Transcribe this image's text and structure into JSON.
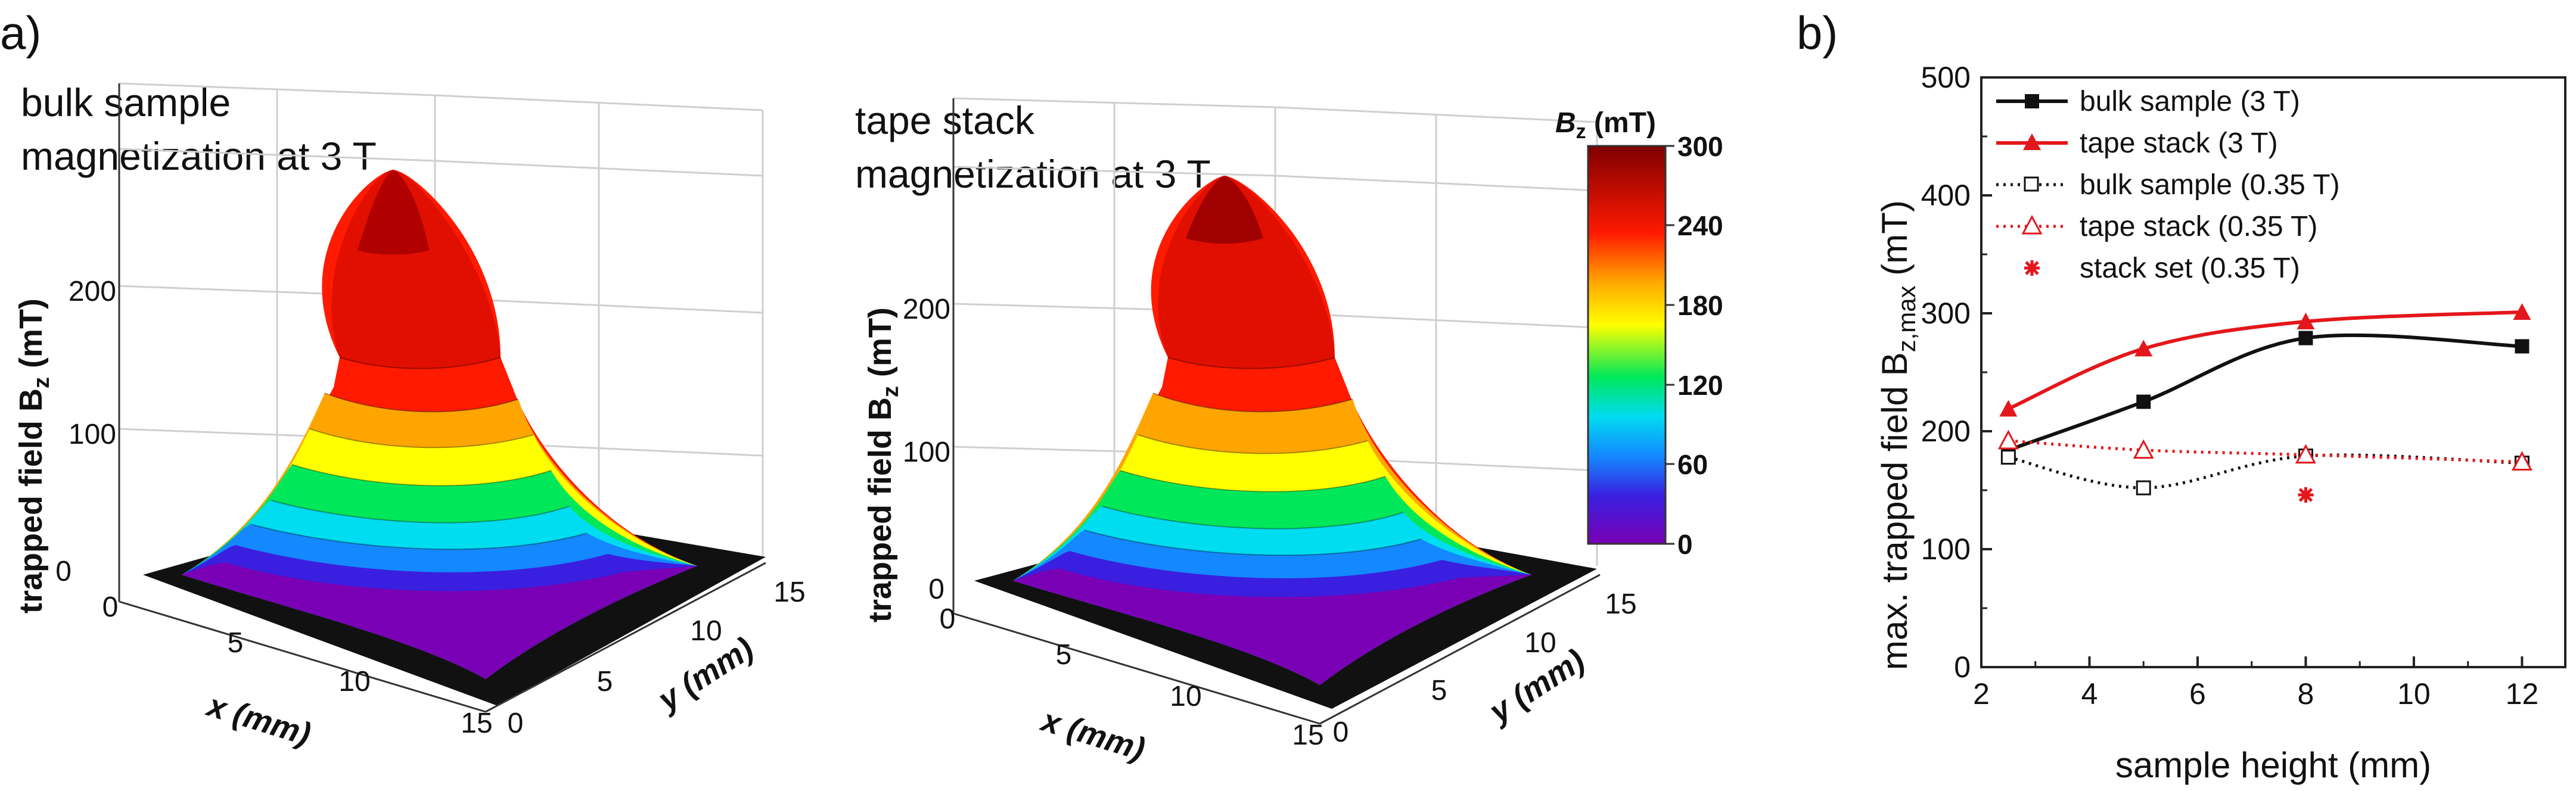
{
  "panels": {
    "a": "a)",
    "b": "b)"
  },
  "colors": {
    "black_series": "#111111",
    "red_series": "#e3171b",
    "colormap": [
      "#7a00b5",
      "#3a1fe0",
      "#1488ff",
      "#00dcf0",
      "#00e85a",
      "#ffff00",
      "#ffa500",
      "#ff1a00",
      "#7f0000"
    ]
  },
  "plot3d": [
    {
      "title_line1": "bulk sample",
      "title_line2": "magnetization at 3 T",
      "zlabel": "trapped field B",
      "zlabel_sub": "z",
      "zlabel_unit": " (mT)",
      "zticks": [
        "0",
        "100",
        "200"
      ],
      "xlabel": "x (mm)",
      "ylabel": "y (mm)",
      "xticks": [
        "0",
        "5",
        "10",
        "15"
      ],
      "yticks": [
        "0",
        "5",
        "10",
        "15"
      ],
      "peak_mT": 272
    },
    {
      "title_line1": "tape stack",
      "title_line2": "magnetization at 3 T",
      "zlabel": "trapped field B",
      "zlabel_sub": "z",
      "zlabel_unit": " (mT)",
      "zticks": [
        "0",
        "100",
        "200"
      ],
      "xlabel": "x (mm)",
      "ylabel": "y (mm)",
      "xticks": [
        "0",
        "5",
        "10",
        "15"
      ],
      "yticks": [
        "0",
        "5",
        "10",
        "15"
      ],
      "peak_mT": 300
    }
  ],
  "colorbar": {
    "title_sym": "B",
    "title_sub": "z",
    "title_unit": " (mT)",
    "min": 0,
    "max": 300,
    "ticks": [
      "300",
      "240",
      "180",
      "120",
      "60",
      "0"
    ]
  },
  "chart_data": {
    "type": "line",
    "title": "",
    "xlabel": "sample height (mm)",
    "ylabel": "max. trapped field B",
    "ylabel_sub": "z,max",
    "ylabel_unit": "  (mT)",
    "xlim": [
      2,
      12.8
    ],
    "ylim": [
      0,
      500
    ],
    "xticks": [
      "2",
      "4",
      "6",
      "8",
      "10",
      "12"
    ],
    "yticks": [
      "0",
      "100",
      "200",
      "300",
      "400",
      "500"
    ],
    "series": [
      {
        "name": "bulk sample (3 T)",
        "x": [
          2.5,
          5,
          8,
          12
        ],
        "y": [
          184,
          225,
          279,
          272
        ],
        "marker": "filled-square",
        "line": "solid",
        "color": "#111111"
      },
      {
        "name": "tape stack (3 T)",
        "x": [
          2.5,
          5,
          8,
          12
        ],
        "y": [
          219,
          270,
          293,
          301
        ],
        "marker": "filled-triangle",
        "line": "solid",
        "color": "#e3171b"
      },
      {
        "name": "bulk sample (0.35 T)",
        "x": [
          2.5,
          5,
          8,
          12
        ],
        "y": [
          178,
          152,
          179,
          173
        ],
        "marker": "open-square",
        "line": "dotted",
        "color": "#111111"
      },
      {
        "name": "tape stack (0.35 T)",
        "x": [
          2.5,
          5,
          8,
          12
        ],
        "y": [
          192,
          184,
          180,
          174
        ],
        "marker": "open-triangle",
        "line": "dotted",
        "color": "#e3171b"
      },
      {
        "name": "stack set (0.35 T)",
        "x": [
          8
        ],
        "y": [
          146
        ],
        "marker": "asterisk",
        "line": "none",
        "color": "#e3171b"
      }
    ],
    "legend_position": "top-left"
  }
}
